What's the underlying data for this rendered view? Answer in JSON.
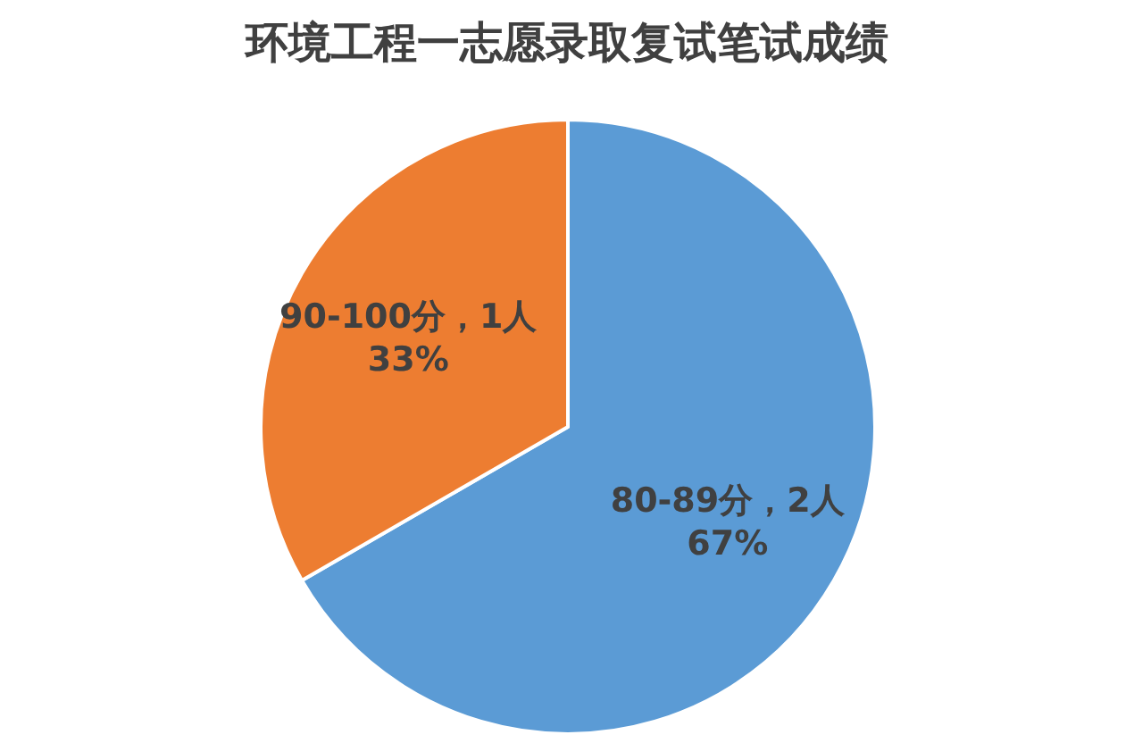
{
  "chart_data": {
    "type": "pie",
    "title": "环境工程一志愿录取复试笔试成绩",
    "categories": [
      "80-89分",
      "90-100分"
    ],
    "values": [
      2,
      1
    ],
    "colors": [
      "#5b9bd5",
      "#ed7d31"
    ],
    "value_labels": [
      "，2人 67%",
      "，1人 33%"
    ],
    "legend": false
  }
}
